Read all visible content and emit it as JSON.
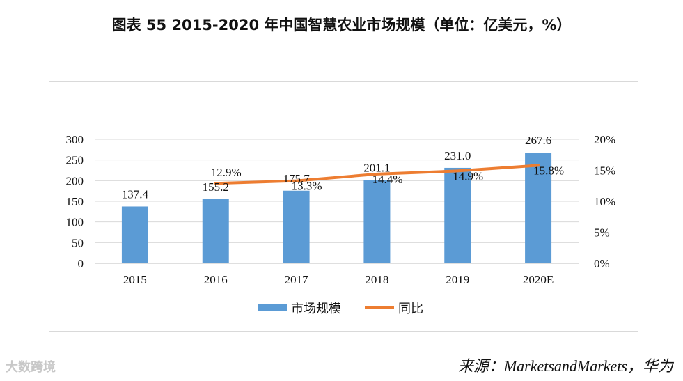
{
  "title": "图表 55   2015-2020 年中国智慧农业市场规模（单位：亿美元，%）",
  "source": "来源：MarketsandMarkets，华为",
  "watermark": "大数跨境",
  "colors": {
    "bar": "#5b9bd5",
    "line": "#ed7d31",
    "grid": "#d9d9d9"
  },
  "chart_data": {
    "type": "bar",
    "categories": [
      "2015",
      "2016",
      "2017",
      "2018",
      "2019",
      "2020E"
    ],
    "series": [
      {
        "name": "市场规模",
        "type": "bar",
        "axis": "left",
        "values": [
          137.4,
          155.2,
          175.7,
          201.1,
          231.0,
          267.6
        ],
        "labels": [
          "137.4",
          "155.2",
          "175.7",
          "201.1",
          "231.0",
          "267.6"
        ]
      },
      {
        "name": "同比",
        "type": "line",
        "axis": "right",
        "values": [
          null,
          12.9,
          13.3,
          14.4,
          14.9,
          15.8
        ],
        "labels": [
          "",
          "12.9%",
          "13.3%",
          "14.4%",
          "14.9%",
          "15.8%"
        ]
      }
    ],
    "y_left": {
      "min": 0,
      "max": 300,
      "ticks": [
        "0",
        "50",
        "100",
        "150",
        "200",
        "250",
        "300"
      ]
    },
    "y_right": {
      "min": 0,
      "max": 20,
      "ticks": [
        "0%",
        "5%",
        "10%",
        "15%",
        "20%"
      ]
    },
    "grid": true,
    "legend": "bottom-center"
  }
}
